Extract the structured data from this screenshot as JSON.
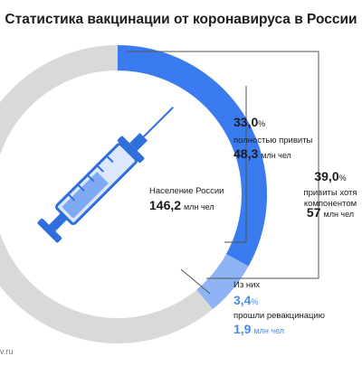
{
  "chart_data": {
    "type": "donut",
    "title": "Статистика вакцинации от коронавируса в России",
    "center": {
      "label": "Население России",
      "value": 146.2,
      "value_label": "146,2",
      "unit": "млн чел"
    },
    "series": [
      {
        "name_lines": [
          "привиты хотя",
          "компонентом"
        ],
        "value": 39.0,
        "value_label": "39,0",
        "unit": "%",
        "people": 57,
        "people_unit": "млн чел",
        "color": "#8fb4f5"
      },
      {
        "name_lines": [
          "полностью привиты"
        ],
        "value": 33.0,
        "value_label": "33,0",
        "unit": "%",
        "people": 48.3,
        "people_label": "48,3",
        "people_unit": "млн чел",
        "color": "#3b7bf0"
      }
    ],
    "revaccinated": {
      "prefix": "Из них",
      "value": 3.4,
      "value_label": "3,4",
      "unit": "%",
      "name": "прошли ревакцинацию",
      "people": 1.9,
      "people_label": "1,9",
      "people_unit": "млн чел",
      "color": "#4a8ae8"
    },
    "ring_color": "#d9d9d9",
    "source": "v.ru"
  }
}
